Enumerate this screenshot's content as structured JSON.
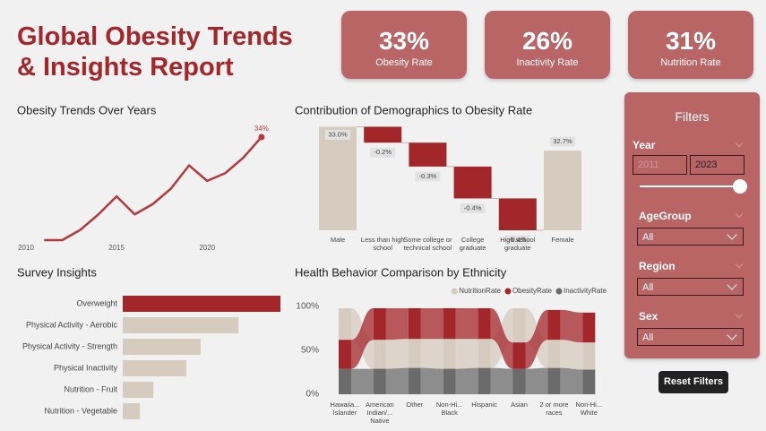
{
  "header": {
    "title_lines": [
      "Global Obesity Trends",
      "& Insights Report"
    ]
  },
  "kpis": [
    {
      "value": "33%",
      "label": "Obesity Rate"
    },
    {
      "value": "26%",
      "label": "Inactivity Rate"
    },
    {
      "value": "31%",
      "label": "Nutrition Rate"
    }
  ],
  "chart_data": [
    {
      "type": "line",
      "title": "Obesity Trends Over Years",
      "x": [
        2011,
        2012,
        2013,
        2014,
        2015,
        2016,
        2017,
        2018,
        2019,
        2020,
        2021,
        2022,
        2023
      ],
      "values": [
        30.0,
        30.0,
        30.4,
        31.0,
        31.7,
        31.0,
        31.4,
        32.0,
        32.9,
        32.3,
        32.6,
        33.2,
        34.0
      ],
      "value_labels": [
        null,
        null,
        null,
        null,
        null,
        null,
        null,
        null,
        null,
        null,
        null,
        null,
        "34%"
      ],
      "color": "#b3393c",
      "xlim": [
        2010,
        2023.5
      ],
      "xticks": [
        2010,
        2015,
        2020
      ],
      "ylim": [
        29.8,
        34.5
      ]
    },
    {
      "type": "waterfall",
      "title": "Contribution of Demographics to Obesity Rate",
      "categories": [
        "Male",
        "Less than high school",
        "Some college or technical school",
        "College graduate",
        "High school graduate",
        "Female"
      ],
      "measures": [
        "total",
        "relative",
        "relative",
        "relative",
        "relative",
        "total"
      ],
      "values": [
        33.0,
        -0.2,
        -0.3,
        -0.4,
        -0.4,
        32.7
      ],
      "value_labels": [
        "33.0%",
        "-0.2%",
        "-0.3%",
        "-0.4%",
        "-0.4%",
        "32.7%"
      ],
      "colors": {
        "total": "#d6cbbf",
        "decrease": "#a3262a"
      },
      "ylim": [
        31.7,
        33.05
      ]
    },
    {
      "type": "hbar",
      "title": "Survey Insights",
      "categories": [
        "Overweight",
        "Physical Activity - Aerobic",
        "Physical Activity - Strength",
        "Physical Inactivity",
        "Nutrition - Fruit",
        "Nutrition - Vegetable"
      ],
      "values": [
        35,
        25.7,
        17.3,
        14.1,
        6.8,
        3.8
      ],
      "colors": [
        "#a3262a",
        "#d6cbbf",
        "#d6cbbf",
        "#d6cbbf",
        "#d6cbbf",
        "#d6cbbf"
      ],
      "xlim": [
        0,
        35
      ]
    },
    {
      "type": "ribbon",
      "title": "Health Behavior Comparison by Ethnicity",
      "categories": [
        "Hawaiia... Islander",
        "American Indian/... Native",
        "Other",
        "Non-Hi... Black",
        "Hispanic",
        "Asian",
        "2 or more races",
        "Non-Hi... White"
      ],
      "series": [
        {
          "name": "NutritionRate",
          "color": "#d6cbbf",
          "values": [
            36,
            33,
            33,
            34,
            33,
            39,
            32,
            31
          ]
        },
        {
          "name": "ObesityRate",
          "color": "#a3262a",
          "values": [
            33,
            36,
            35,
            35,
            35,
            30,
            34,
            34
          ]
        },
        {
          "name": "InactivityRate",
          "color": "#6b6b6b",
          "values": [
            29,
            29,
            30,
            29,
            30,
            29,
            30,
            28
          ]
        }
      ],
      "ylim": [
        0,
        100
      ],
      "yticks": [
        {
          "value": 0,
          "label": "0%"
        },
        {
          "value": 50,
          "label": "50%"
        },
        {
          "value": 100,
          "label": "100%"
        }
      ],
      "legend": "top-right"
    }
  ],
  "filters": {
    "title": "Filters",
    "year": {
      "label": "Year",
      "from": "2011",
      "to": "2023"
    },
    "dropdowns": [
      {
        "label": "AgeGroup",
        "value": "All"
      },
      {
        "label": "Region",
        "value": "All"
      },
      {
        "label": "Sex",
        "value": "All"
      }
    ],
    "reset": "Reset Filters"
  }
}
